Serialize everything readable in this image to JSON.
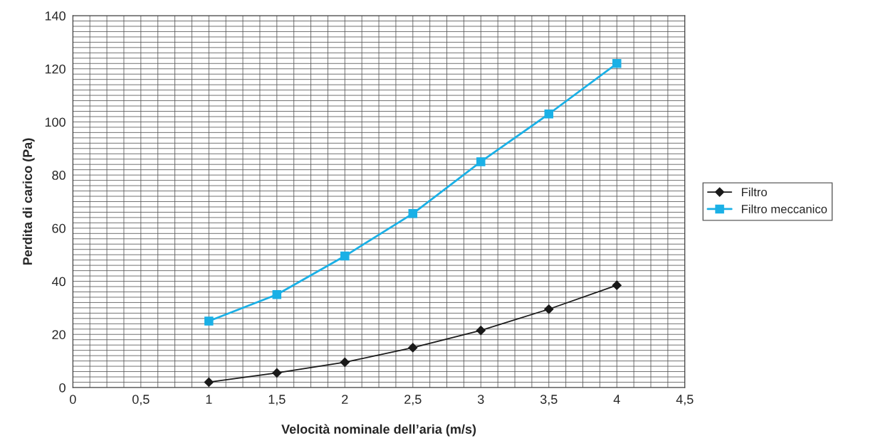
{
  "chart_data": {
    "type": "line",
    "xlabel": "Velocità nominale dell’aria (m/s)",
    "ylabel": "Perdita di carico (Pa)",
    "x": [
      1,
      1.5,
      2,
      2.5,
      3,
      3.5,
      4
    ],
    "series": [
      {
        "name": "Filtro",
        "color": "#1a1a1a",
        "marker": "diamond",
        "values": [
          2,
          5.5,
          9.5,
          15,
          21.5,
          29.5,
          38.5
        ]
      },
      {
        "name": "Filtro meccanico",
        "color": "#1ab0e6",
        "marker": "square",
        "values": [
          25,
          35,
          49.5,
          65.5,
          85,
          103,
          122
        ]
      }
    ],
    "xlim": [
      0,
      4.5
    ],
    "ylim": [
      0,
      140
    ],
    "xticks": [
      0,
      {
        "value": 0.5,
        "label": "0,5"
      },
      1,
      {
        "value": 1.5,
        "label": "1,5"
      },
      2,
      {
        "value": 2.5,
        "label": "2,5"
      },
      3,
      {
        "value": 3.5,
        "label": "3,5"
      },
      4,
      {
        "value": 4.5,
        "label": "4,5"
      }
    ],
    "yticks": [
      0,
      20,
      40,
      60,
      80,
      100,
      120,
      140
    ],
    "grid": true,
    "legend": "right"
  }
}
